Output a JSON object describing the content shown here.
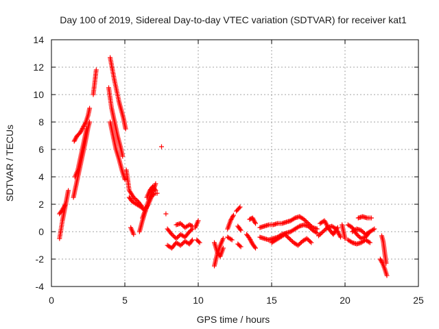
{
  "chart_data": {
    "type": "scatter",
    "title": "Day 100 of 2019, Sidereal Day-to-day VTEC variation (SDTVAR) for receiver kat1",
    "xlabel": "GPS time / hours",
    "ylabel": "SDTVAR / TECUs",
    "xlim": [
      0,
      25
    ],
    "ylim": [
      -4,
      14
    ],
    "xticks": [
      0,
      5,
      10,
      15,
      20,
      25
    ],
    "yticks": [
      -4,
      -2,
      0,
      2,
      4,
      6,
      8,
      10,
      12,
      14
    ],
    "grid": true,
    "marker": "+",
    "marker_color": "#ff0000",
    "series": [
      {
        "name": "kat1",
        "segments": [
          {
            "x": [
              0.55,
              0.75,
              0.95,
              1.15
            ],
            "y": [
              -0.5,
              0.8,
              1.9,
              3.0
            ]
          },
          {
            "x": [
              0.55,
              0.75,
              0.95
            ],
            "y": [
              1.3,
              1.6,
              2.0
            ]
          },
          {
            "x": [
              1.5,
              1.7,
              1.9,
              2.1,
              2.3,
              2.5,
              2.6
            ],
            "y": [
              2.5,
              3.5,
              4.5,
              5.5,
              6.5,
              7.6,
              8.0
            ]
          },
          {
            "x": [
              1.55,
              1.75,
              1.95,
              2.15,
              2.35,
              2.5,
              2.6
            ],
            "y": [
              6.6,
              7.0,
              7.2,
              7.6,
              8.0,
              8.5,
              9.0
            ]
          },
          {
            "x": [
              1.6,
              1.8,
              2.0,
              2.2,
              2.4
            ],
            "y": [
              4.0,
              4.5,
              5.5,
              6.5,
              7.5
            ]
          },
          {
            "x": [
              2.85,
              3.05
            ],
            "y": [
              10.0,
              11.8
            ]
          },
          {
            "x": [
              3.9,
              4.1,
              4.3,
              4.5,
              4.7,
              4.85
            ],
            "y": [
              10.5,
              9.0,
              8.0,
              7.0,
              6.2,
              5.5
            ]
          },
          {
            "x": [
              4.0,
              4.2,
              4.4,
              4.6,
              4.8,
              5.0
            ],
            "y": [
              8.0,
              7.0,
              6.0,
              5.3,
              4.5,
              3.8
            ]
          },
          {
            "x": [
              4.0,
              4.3,
              4.6,
              4.9,
              5.05
            ],
            "y": [
              12.7,
              11.0,
              9.5,
              8.3,
              7.5
            ]
          },
          {
            "x": [
              5.1,
              5.3,
              5.6,
              5.9,
              6.2
            ],
            "y": [
              4.5,
              3.0,
              2.5,
              2.2,
              1.8
            ]
          },
          {
            "x": [
              5.3,
              5.5,
              5.8,
              6.1,
              6.4
            ],
            "y": [
              2.5,
              2.2,
              2.0,
              1.8,
              1.5
            ]
          },
          {
            "x": [
              5.4,
              5.6
            ],
            "y": [
              0.3,
              -0.2
            ]
          },
          {
            "x": [
              6.0,
              6.2,
              6.4,
              6.6,
              6.8,
              7.0,
              7.1
            ],
            "y": [
              0.0,
              0.8,
              1.5,
              2.2,
              2.8,
              3.2,
              3.5
            ]
          },
          {
            "x": [
              6.2,
              6.4,
              6.6,
              6.8,
              7.0,
              7.2
            ],
            "y": [
              1.0,
              1.6,
              2.0,
              2.5,
              2.8,
              2.8
            ]
          },
          {
            "x": [
              6.5,
              6.7,
              6.9,
              7.1
            ],
            "y": [
              2.5,
              3.0,
              3.3,
              3.0
            ]
          },
          {
            "x": [
              7.5
            ],
            "y": [
              6.2
            ]
          },
          {
            "x": [
              7.8
            ],
            "y": [
              1.3
            ]
          },
          {
            "x": [
              7.9,
              8.2,
              8.5,
              8.8,
              9.1,
              9.4,
              9.6
            ],
            "y": [
              0.2,
              -0.2,
              -0.5,
              -0.2,
              -0.4,
              0.0,
              0.2
            ]
          },
          {
            "x": [
              7.9,
              8.2,
              8.5,
              8.8,
              9.1,
              9.4,
              9.6
            ],
            "y": [
              -1.0,
              -1.2,
              -0.8,
              -1.0,
              -0.7,
              -0.9,
              -0.6
            ]
          },
          {
            "x": [
              8.5,
              8.8,
              9.1,
              9.4,
              9.6
            ],
            "y": [
              0.5,
              0.6,
              0.3,
              0.5,
              0.4
            ]
          },
          {
            "x": [
              9.8,
              10.0
            ],
            "y": [
              0.3,
              0.8
            ]
          },
          {
            "x": [
              9.9,
              10.1
            ],
            "y": [
              -0.6,
              -0.8
            ]
          },
          {
            "x": [
              11.1,
              11.3,
              11.5,
              11.7
            ],
            "y": [
              -2.5,
              -1.6,
              -1.0,
              -0.5
            ]
          },
          {
            "x": [
              11.1,
              11.3,
              11.5,
              11.7
            ],
            "y": [
              -0.8,
              -1.5,
              -1.8,
              -1.2
            ]
          },
          {
            "x": [
              12.0,
              12.2,
              12.4
            ],
            "y": [
              0.2,
              0.8,
              1.2
            ]
          },
          {
            "x": [
              12.0,
              12.3
            ],
            "y": [
              -0.4,
              -0.6
            ]
          },
          {
            "x": [
              12.6,
              12.85
            ],
            "y": [
              1.5,
              1.8
            ]
          },
          {
            "x": [
              12.7,
              12.9
            ],
            "y": [
              0.4,
              0.1
            ]
          },
          {
            "x": [
              12.7,
              12.9
            ],
            "y": [
              -0.9,
              -1.1
            ]
          },
          {
            "x": [
              13.3,
              13.5,
              13.7,
              13.9
            ],
            "y": [
              -0.2,
              -0.5,
              -0.9,
              -1.2
            ]
          },
          {
            "x": [
              13.5,
              13.7,
              13.9
            ],
            "y": [
              0.9,
              1.0,
              0.6
            ]
          },
          {
            "x": [
              14.2,
              14.5,
              14.8,
              15.1,
              15.4,
              15.7,
              16.0,
              16.3,
              16.6,
              16.9,
              17.2,
              17.5,
              17.8,
              18.1
            ],
            "y": [
              0.3,
              0.4,
              0.5,
              0.5,
              0.6,
              0.6,
              0.7,
              0.8,
              1.0,
              1.1,
              0.9,
              0.6,
              0.3,
              0.2
            ]
          },
          {
            "x": [
              14.2,
              14.5,
              14.8,
              15.1,
              15.4,
              15.7,
              16.0,
              16.3,
              16.6,
              16.9,
              17.2,
              17.5,
              17.8,
              18.1
            ],
            "y": [
              -0.4,
              -0.5,
              -0.6,
              -0.5,
              -0.4,
              -0.2,
              -0.1,
              0.0,
              0.2,
              0.4,
              0.5,
              0.4,
              0.1,
              -0.1
            ]
          },
          {
            "x": [
              15.0,
              15.3,
              15.6,
              15.9,
              16.2,
              16.5,
              16.8,
              17.1,
              17.4,
              17.7
            ],
            "y": [
              -0.8,
              -0.6,
              -0.4,
              -0.2,
              -0.5,
              -0.8,
              -1.0,
              -0.7,
              -0.5,
              -0.8
            ]
          },
          {
            "x": [
              18.2,
              18.5,
              18.8,
              19.1,
              19.4,
              19.7
            ],
            "y": [
              -0.3,
              0.0,
              0.3,
              0.4,
              0.2,
              -0.4
            ]
          },
          {
            "x": [
              18.3,
              18.6,
              18.9,
              19.2,
              19.5
            ],
            "y": [
              0.6,
              0.8,
              0.2,
              -0.2,
              0.3
            ]
          },
          {
            "x": [
              19.8,
              20.0
            ],
            "y": [
              0.5,
              -0.5
            ]
          },
          {
            "x": [
              20.2,
              20.5,
              20.8,
              21.1,
              21.4,
              21.7,
              22.0
            ],
            "y": [
              0.5,
              0.3,
              -0.2,
              -0.5,
              -0.4,
              0.0,
              0.2
            ]
          },
          {
            "x": [
              20.2,
              20.5,
              20.8,
              21.1,
              21.4,
              21.7
            ],
            "y": [
              -0.6,
              -0.8,
              -0.9,
              -0.8,
              -0.6,
              -0.8
            ]
          },
          {
            "x": [
              20.5,
              20.8,
              21.1,
              21.4,
              21.7
            ],
            "y": [
              0.0,
              0.2,
              0.1,
              -0.2,
              0.0
            ]
          },
          {
            "x": [
              20.9,
              21.2,
              21.5,
              21.8
            ],
            "y": [
              1.0,
              1.1,
              1.0,
              1.0
            ]
          },
          {
            "x": [
              22.5,
              22.6,
              22.7,
              22.8
            ],
            "y": [
              -0.3,
              -0.7,
              -1.5,
              -2.3
            ]
          },
          {
            "x": [
              22.4,
              22.55,
              22.7,
              22.85
            ],
            "y": [
              -2.0,
              -2.3,
              -2.7,
              -3.2
            ]
          }
        ]
      }
    ]
  }
}
